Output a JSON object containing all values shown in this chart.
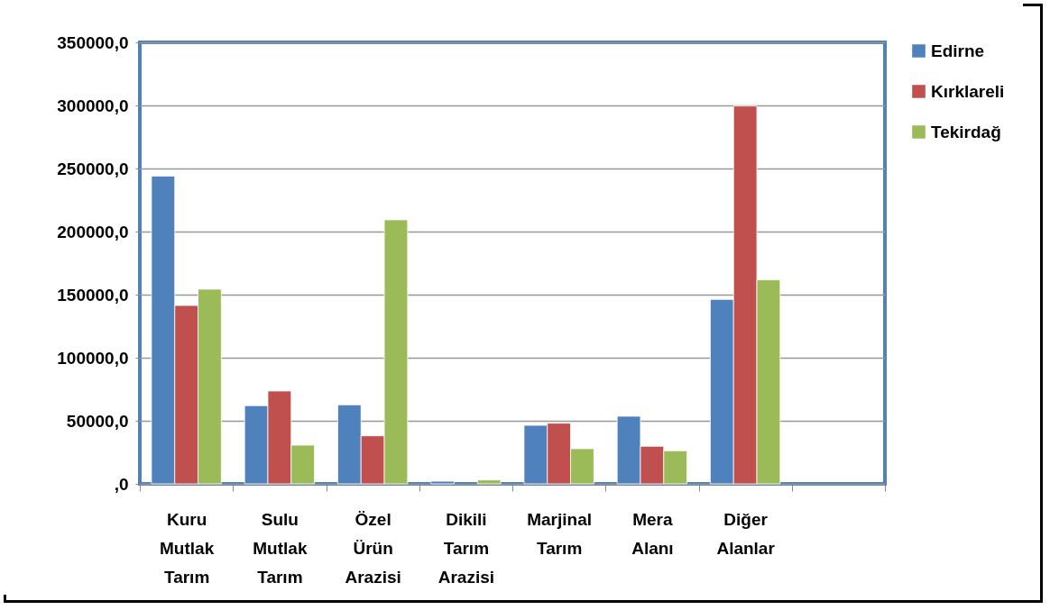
{
  "chart_data": {
    "type": "bar",
    "categories": [
      "Kuru Mutlak Tarım",
      "Sulu Mutlak Tarım",
      "Özel Ürün Arazisi",
      "Dikili Tarım Arazisi",
      "Marjinal Tarım",
      "Mera Alanı",
      "Diğer Alanlar",
      null
    ],
    "series": [
      {
        "name": "Edirne",
        "color": "#4f81bd",
        "values": [
          244000,
          62000,
          62600,
          2100,
          46400,
          53600,
          146200,
          null
        ]
      },
      {
        "name": "Kırklareli",
        "color": "#c0504d",
        "values": [
          141400,
          73600,
          38100,
          null,
          48100,
          29800,
          299500,
          null
        ]
      },
      {
        "name": "Tekirdağ",
        "color": "#9bbb59",
        "values": [
          154300,
          30700,
          209300,
          3100,
          27900,
          26200,
          161700,
          null
        ]
      }
    ],
    "ylim": [
      0,
      350000
    ],
    "yticks": [
      {
        "value": 0,
        "label": ",0"
      },
      {
        "value": 50000,
        "label": "50000,0"
      },
      {
        "value": 100000,
        "label": "100000,0"
      },
      {
        "value": 150000,
        "label": "150000,0"
      },
      {
        "value": 200000,
        "label": "200000,0"
      },
      {
        "value": 250000,
        "label": "250000,0"
      },
      {
        "value": 300000,
        "label": "300000,0"
      },
      {
        "value": 350000,
        "label": "350000,0"
      }
    ],
    "grid": "y",
    "legend": "right"
  }
}
